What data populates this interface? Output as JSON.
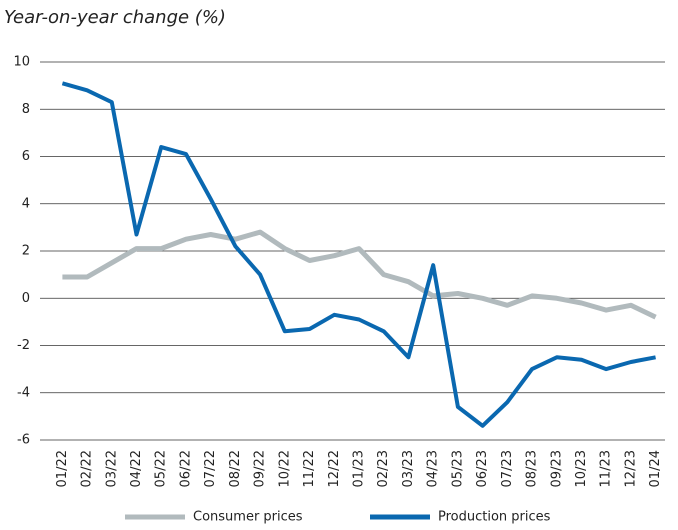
{
  "chart_data": {
    "type": "line",
    "title": "Year-on-year change (%)",
    "categories": [
      "01/22",
      "02/22",
      "03/22",
      "04/22",
      "05/22",
      "06/22",
      "07/22",
      "08/22",
      "09/22",
      "10/22",
      "11/22",
      "12/22",
      "01/23",
      "02/23",
      "03/23",
      "04/23",
      "05/23",
      "06/23",
      "07/23",
      "08/23",
      "09/23",
      "10/23",
      "11/23",
      "12/23",
      "01/24"
    ],
    "series": [
      {
        "name": "Consumer prices",
        "color": "#b1babd",
        "values": [
          0.9,
          0.9,
          1.5,
          2.1,
          2.1,
          2.5,
          2.7,
          2.5,
          2.8,
          2.1,
          1.6,
          1.8,
          2.1,
          1.0,
          0.7,
          0.1,
          0.2,
          0.0,
          -0.3,
          0.1,
          0.0,
          -0.2,
          -0.5,
          -0.3,
          -0.8
        ]
      },
      {
        "name": "Production prices",
        "color": "#0a68b0",
        "values": [
          9.1,
          8.8,
          8.3,
          2.7,
          6.4,
          6.1,
          4.2,
          2.2,
          1.0,
          -1.4,
          -1.3,
          -0.7,
          -0.9,
          -1.4,
          -2.5,
          1.4,
          -4.6,
          -5.4,
          -4.4,
          -3.0,
          -2.5,
          -2.6,
          -3.0,
          -2.7,
          -2.5
        ]
      }
    ],
    "ylim": [
      -6,
      10
    ],
    "yticks": [
      -6,
      -4,
      -2,
      0,
      2,
      4,
      6,
      8,
      10
    ],
    "grid": true,
    "legend": "bottom"
  }
}
